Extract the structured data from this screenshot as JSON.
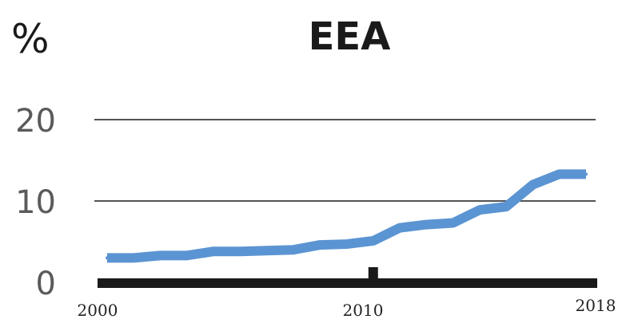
{
  "chart_data": {
    "type": "line",
    "title": "EEA",
    "unit_label": "%",
    "xlabel": "",
    "ylabel": "",
    "x": [
      2000,
      2001,
      2002,
      2003,
      2004,
      2005,
      2006,
      2007,
      2008,
      2009,
      2010,
      2011,
      2012,
      2013,
      2014,
      2015,
      2016,
      2017,
      2018
    ],
    "series": [
      {
        "values": [
          3.0,
          3.0,
          3.3,
          3.3,
          3.8,
          3.8,
          3.9,
          4.0,
          4.6,
          4.7,
          5.1,
          6.7,
          7.1,
          7.3,
          8.9,
          9.3,
          12.0,
          13.3,
          13.3
        ],
        "color": "#5b94d2"
      }
    ],
    "xlim": [
      2000,
      2018
    ],
    "ylim": [
      0,
      20
    ],
    "x_ticks": [
      "2000",
      "2010",
      "2018"
    ],
    "y_ticks": [
      "0",
      "10",
      "20"
    ],
    "grid": true,
    "axis_color": "#1a1a1a"
  }
}
